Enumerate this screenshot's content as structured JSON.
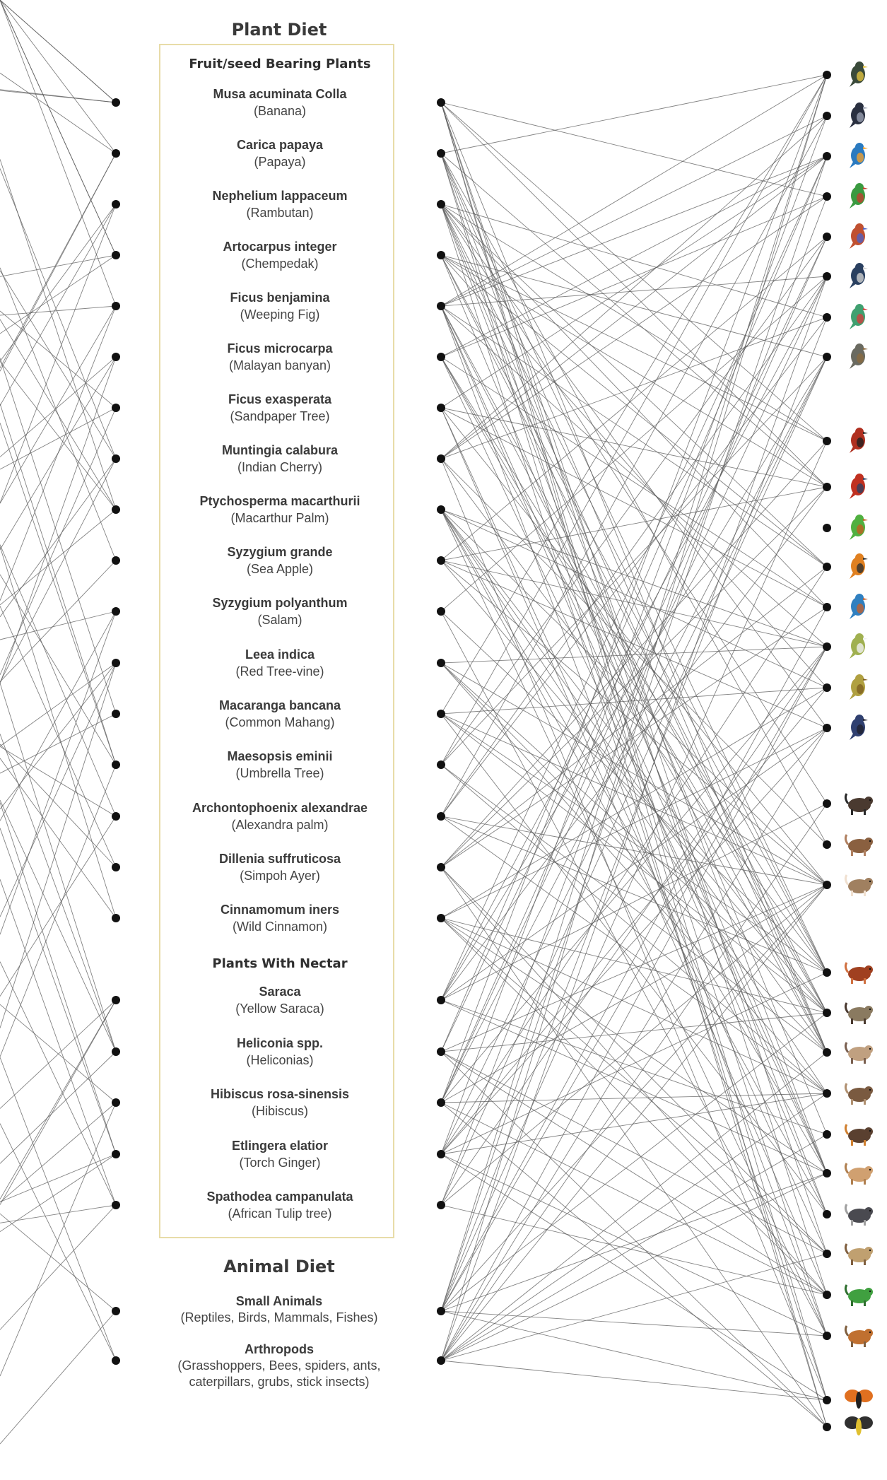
{
  "plant_diet_title": "Plant Diet",
  "fruit_section_title": "Fruit/seed Bearing Plants",
  "nectar_section_title": "Plants With Nectar",
  "animal_diet_title": "Animal Diet",
  "plants": [
    {
      "scientific": "Musa acuminata Colla",
      "common": "(Banana)"
    },
    {
      "scientific": "Carica papaya",
      "common": "(Papaya)"
    },
    {
      "scientific": "Nephelium lappaceum",
      "common": "(Rambutan)"
    },
    {
      "scientific": "Artocarpus integer",
      "common": "(Chempedak)"
    },
    {
      "scientific": "Ficus benjamina",
      "common": "(Weeping Fig)"
    },
    {
      "scientific": "Ficus microcarpa",
      "common": "(Malayan banyan)"
    },
    {
      "scientific": "Ficus exasperata",
      "common": "(Sandpaper Tree)"
    },
    {
      "scientific": "Muntingia calabura",
      "common": "(Indian Cherry)"
    },
    {
      "scientific": "Ptychosperma macarthurii",
      "common": "(Macarthur Palm)"
    },
    {
      "scientific": "Syzygium grande",
      "common": "(Sea Apple)"
    },
    {
      "scientific": "Syzygium polyanthum",
      "common": "(Salam)"
    },
    {
      "scientific": "Leea indica",
      "common": "(Red Tree-vine)"
    },
    {
      "scientific": "Macaranga bancana",
      "common": "(Common Mahang)"
    },
    {
      "scientific": "Maesopsis eminii",
      "common": "(Umbrella Tree)"
    },
    {
      "scientific": "Archontophoenix alexandrae",
      "common": "(Alexandra palm)"
    },
    {
      "scientific": "Dillenia suffruticosa",
      "common": "(Simpoh Ayer)"
    },
    {
      "scientific": "Cinnamomum iners",
      "common": "(Wild Cinnamon)"
    }
  ],
  "nectar_plants": [
    {
      "scientific": "Saraca",
      "common": "(Yellow Saraca)"
    },
    {
      "scientific": "Heliconia spp.",
      "common": "(Heliconias)"
    },
    {
      "scientific": "Hibiscus rosa-sinensis",
      "common": "(Hibiscus)"
    },
    {
      "scientific": "Etlingera elatior",
      "common": "(Torch Ginger)"
    },
    {
      "scientific": "Spathodea campanulata",
      "common": "(African Tulip tree)"
    }
  ],
  "animal_diet": [
    {
      "scientific": "Small Animals",
      "common": "(Reptiles, Birds, Mammals, Fishes)"
    },
    {
      "scientific": "Arthropods",
      "common": "(Grasshoppers, Bees, spiders, ants,",
      "common2": "caterpillars, grubs, stick insects)"
    }
  ],
  "animals": [
    {
      "icon": "hornbill-icon",
      "color": "#3a4a3a",
      "accent": "#e0c040"
    },
    {
      "icon": "oriole-icon",
      "color": "#2a3040",
      "accent": "#9aa0b0"
    },
    {
      "icon": "kingfisher-icon",
      "color": "#2a7ac0",
      "accent": "#f0a030"
    },
    {
      "icon": "parakeet-icon",
      "color": "#3a9a40",
      "accent": "#c04030"
    },
    {
      "icon": "sunbird-icon",
      "color": "#c05030",
      "accent": "#5060c0"
    },
    {
      "icon": "swallow-icon",
      "color": "#2a4060",
      "accent": "#d0d0d0"
    },
    {
      "icon": "bee-eater-icon",
      "color": "#40a070",
      "accent": "#d04040"
    },
    {
      "icon": "bulbul-icon",
      "color": "#6a6a60",
      "accent": "#8a6a40"
    },
    {
      "icon": "junglefowl-icon",
      "color": "#b03020",
      "accent": "#202020"
    },
    {
      "icon": "flowerpecker-icon",
      "color": "#c03020",
      "accent": "#304060"
    },
    {
      "icon": "green-parrot-icon",
      "color": "#50b040",
      "accent": "#c06020"
    },
    {
      "icon": "minivet-icon",
      "color": "#e08020",
      "accent": "#303030"
    },
    {
      "icon": "blue-kingfisher-icon",
      "color": "#3080c0",
      "accent": "#c06030"
    },
    {
      "icon": "white-eye-icon",
      "color": "#a0b050",
      "accent": "#f0f0f0"
    },
    {
      "icon": "yellow-bird-icon",
      "color": "#b0a040",
      "accent": "#806020"
    },
    {
      "icon": "starling-icon",
      "color": "#304070",
      "accent": "#202030"
    },
    {
      "icon": "wild-boar-icon",
      "color": "#4a3a30",
      "accent": "#2a2a2a"
    },
    {
      "icon": "rat-icon",
      "color": "#8a6040",
      "accent": "#b08060"
    },
    {
      "icon": "mouse-deer-icon",
      "color": "#a08060",
      "accent": "#f0e0d0"
    },
    {
      "icon": "squirrel-icon",
      "color": "#a04020",
      "accent": "#d07040"
    },
    {
      "icon": "treeshrew-icon",
      "color": "#8a7a60",
      "accent": "#4a3a30"
    },
    {
      "icon": "civet-icon",
      "color": "#c0a080",
      "accent": "#7a6050"
    },
    {
      "icon": "flying-squirrel-icon",
      "color": "#7a5a40",
      "accent": "#b09070"
    },
    {
      "icon": "bat-icon",
      "color": "#5a4030",
      "accent": "#d08030"
    },
    {
      "icon": "tree-shrew-small-icon",
      "color": "#d0a070",
      "accent": "#b08050"
    },
    {
      "icon": "monkey-icon",
      "color": "#4a4a50",
      "accent": "#a0a0a0"
    },
    {
      "icon": "slow-loris-icon",
      "color": "#c0a070",
      "accent": "#806040"
    },
    {
      "icon": "lizard-icon",
      "color": "#40a040",
      "accent": "#307030"
    },
    {
      "icon": "flying-lizard-icon",
      "color": "#c07030",
      "accent": "#806040"
    },
    {
      "icon": "butterfly-icon",
      "color": "#e07020",
      "accent": "#202020"
    },
    {
      "icon": "bumblebee-icon",
      "color": "#303030",
      "accent": "#e0c030"
    }
  ]
}
